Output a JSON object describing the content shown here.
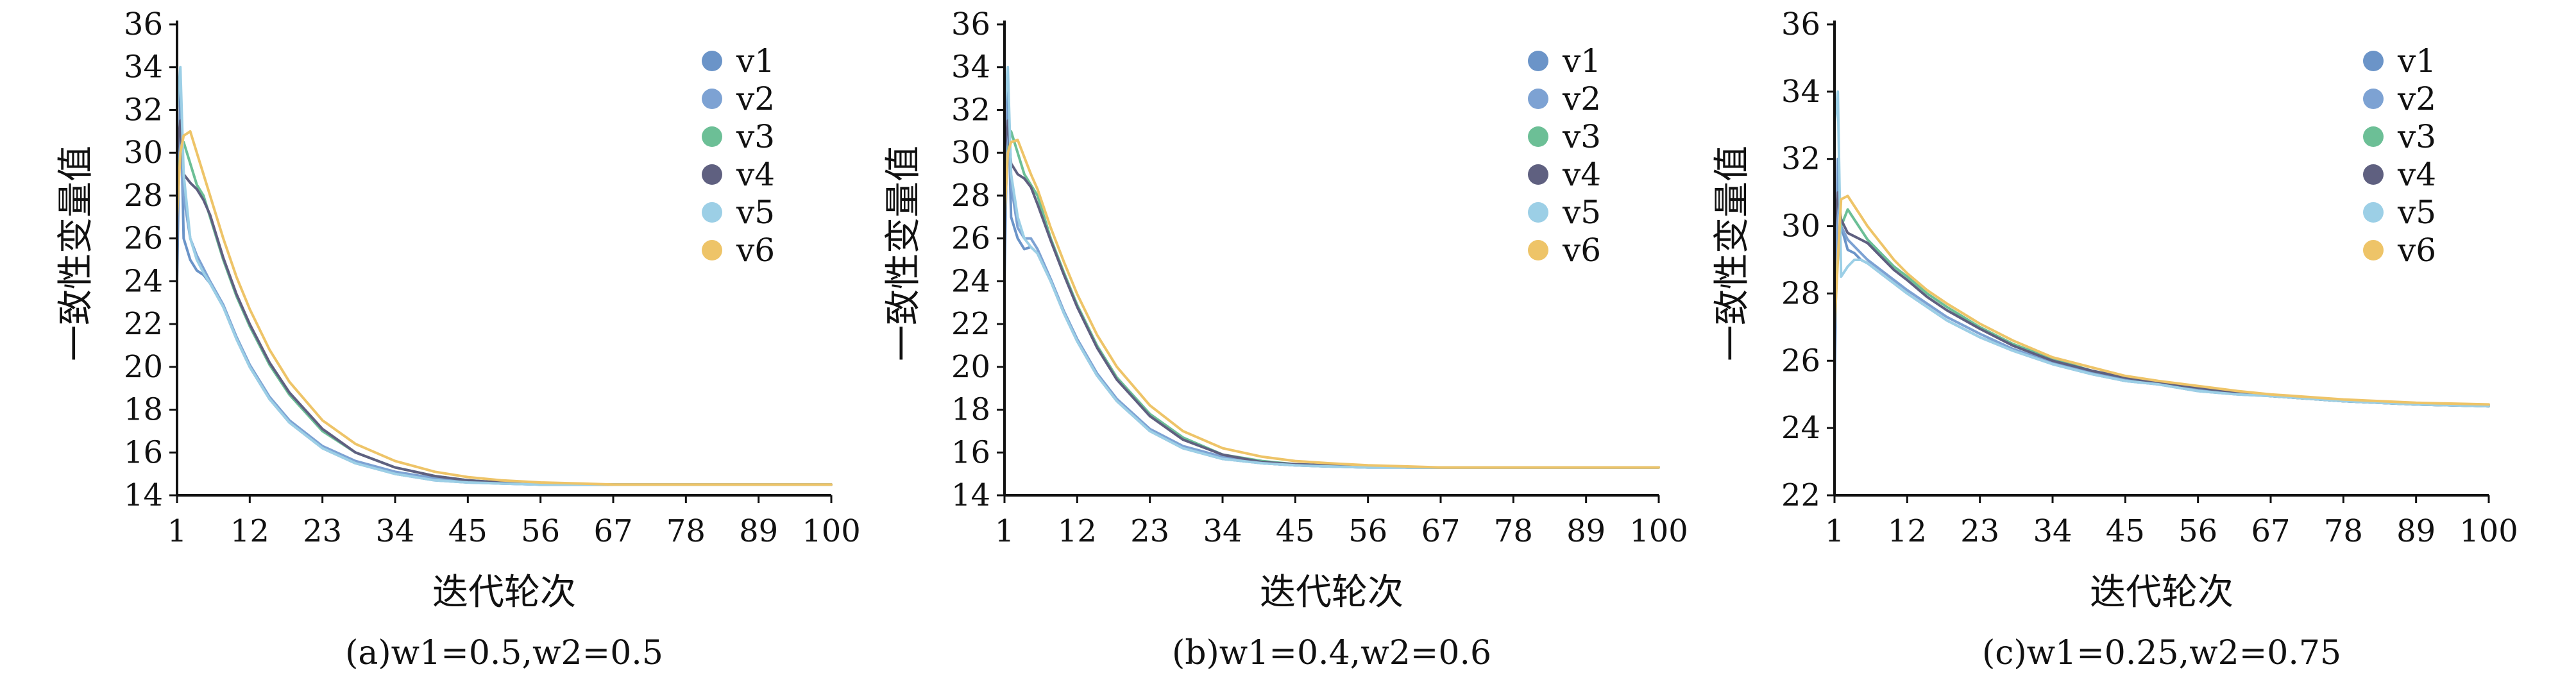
{
  "chart_data": [
    {
      "panel": "(a)",
      "caption": "(a)w1=0.5,w2=0.5",
      "type": "line",
      "xlabel": "迭代轮次",
      "ylabel": "一致性变量值",
      "xlim": [
        1,
        100
      ],
      "ylim": [
        14,
        36
      ],
      "xticks": [
        1,
        12,
        23,
        34,
        45,
        56,
        67,
        78,
        89,
        100
      ],
      "yticks": [
        14,
        16,
        18,
        20,
        22,
        24,
        26,
        28,
        30,
        32,
        34,
        36
      ],
      "grid": false,
      "legend_position": "top-right",
      "series": [
        {
          "name": "v1",
          "color": "#6b94c8",
          "x": [
            1,
            1.5,
            2,
            3,
            4,
            5,
            6,
            8,
            10,
            12,
            15,
            18,
            23,
            28,
            34,
            40,
            45,
            50,
            56,
            62,
            67,
            78,
            89,
            100
          ],
          "y": [
            24,
            33,
            26,
            25,
            24.5,
            24.3,
            23.9,
            22.8,
            21.3,
            20.0,
            18.5,
            17.4,
            16.2,
            15.5,
            15.0,
            14.7,
            14.6,
            14.55,
            14.5,
            14.5,
            14.5,
            14.5,
            14.5,
            14.5
          ]
        },
        {
          "name": "v2",
          "color": "#7da2d3",
          "x": [
            1,
            1.5,
            2,
            3,
            4,
            5,
            6,
            8,
            10,
            12,
            15,
            18,
            23,
            28,
            34,
            40,
            45,
            50,
            56,
            62,
            67,
            78,
            89,
            100
          ],
          "y": [
            26,
            31,
            28,
            26,
            25.2,
            24.6,
            24.0,
            22.9,
            21.4,
            20.1,
            18.6,
            17.5,
            16.3,
            15.6,
            15.1,
            14.8,
            14.65,
            14.55,
            14.5,
            14.5,
            14.5,
            14.5,
            14.5,
            14.5
          ]
        },
        {
          "name": "v3",
          "color": "#6cbf96",
          "x": [
            1,
            1.5,
            2,
            3,
            4,
            5,
            6,
            8,
            10,
            12,
            15,
            18,
            23,
            28,
            34,
            40,
            45,
            50,
            56,
            62,
            67,
            78,
            89,
            100
          ],
          "y": [
            28,
            30,
            30.5,
            29.5,
            28.5,
            28.0,
            27.0,
            25.0,
            23.3,
            21.9,
            20.1,
            18.7,
            17.0,
            16.0,
            15.3,
            14.9,
            14.7,
            14.6,
            14.5,
            14.5,
            14.5,
            14.5,
            14.5,
            14.5
          ]
        },
        {
          "name": "v4",
          "color": "#5f6080",
          "x": [
            1,
            1.5,
            2,
            3,
            4,
            5,
            6,
            8,
            10,
            12,
            15,
            18,
            23,
            28,
            34,
            40,
            45,
            50,
            56,
            62,
            67,
            78,
            89,
            100
          ],
          "y": [
            30,
            31.5,
            29,
            28.6,
            28.3,
            27.8,
            27.1,
            25.1,
            23.4,
            22.0,
            20.2,
            18.8,
            17.1,
            16.0,
            15.3,
            14.9,
            14.7,
            14.6,
            14.5,
            14.5,
            14.5,
            14.5,
            14.5,
            14.5
          ]
        },
        {
          "name": "v5",
          "color": "#9ccfe6",
          "x": [
            1,
            1.5,
            2,
            3,
            4,
            5,
            6,
            8,
            10,
            12,
            15,
            18,
            23,
            28,
            34,
            40,
            45,
            50,
            56,
            62,
            67,
            78,
            89,
            100
          ],
          "y": [
            32,
            34,
            29,
            26,
            25,
            24.4,
            23.9,
            22.8,
            21.3,
            20.0,
            18.5,
            17.4,
            16.2,
            15.5,
            15.0,
            14.7,
            14.6,
            14.55,
            14.5,
            14.5,
            14.5,
            14.5,
            14.5,
            14.5
          ]
        },
        {
          "name": "v6",
          "color": "#eec468",
          "x": [
            1,
            1.5,
            2,
            3,
            4,
            5,
            6,
            8,
            10,
            12,
            15,
            18,
            23,
            28,
            34,
            40,
            45,
            50,
            56,
            62,
            67,
            78,
            89,
            100
          ],
          "y": [
            27,
            30,
            30.8,
            31.0,
            30.0,
            29.0,
            28.0,
            26.0,
            24.2,
            22.7,
            20.8,
            19.3,
            17.5,
            16.4,
            15.6,
            15.1,
            14.85,
            14.7,
            14.6,
            14.55,
            14.5,
            14.5,
            14.5,
            14.5
          ]
        }
      ]
    },
    {
      "panel": "(b)",
      "caption": "(b)w1=0.4,w2=0.6",
      "type": "line",
      "xlabel": "迭代轮次",
      "ylabel": "一致性变量值",
      "xlim": [
        1,
        100
      ],
      "ylim": [
        14,
        36
      ],
      "xticks": [
        1,
        12,
        23,
        34,
        45,
        56,
        67,
        78,
        89,
        100
      ],
      "yticks": [
        14,
        16,
        18,
        20,
        22,
        24,
        26,
        28,
        30,
        32,
        34,
        36
      ],
      "grid": false,
      "legend_position": "top-right",
      "series": [
        {
          "name": "v1",
          "color": "#6b94c8",
          "x": [
            1,
            1.5,
            2,
            3,
            4,
            5,
            6,
            8,
            10,
            12,
            15,
            18,
            23,
            28,
            34,
            40,
            45,
            50,
            56,
            62,
            67,
            78,
            89,
            100
          ],
          "y": [
            24,
            33,
            27,
            26,
            25.5,
            25.6,
            25.3,
            24.0,
            22.5,
            21.2,
            19.6,
            18.4,
            17.0,
            16.2,
            15.7,
            15.5,
            15.4,
            15.35,
            15.3,
            15.3,
            15.3,
            15.3,
            15.3,
            15.3
          ]
        },
        {
          "name": "v2",
          "color": "#7da2d3",
          "x": [
            1,
            1.5,
            2,
            3,
            4,
            5,
            6,
            8,
            10,
            12,
            15,
            18,
            23,
            28,
            34,
            40,
            45,
            50,
            56,
            62,
            67,
            78,
            89,
            100
          ],
          "y": [
            26,
            31,
            28.5,
            26.5,
            26,
            26.0,
            25.5,
            24.1,
            22.6,
            21.3,
            19.7,
            18.5,
            17.1,
            16.3,
            15.8,
            15.5,
            15.4,
            15.35,
            15.3,
            15.3,
            15.3,
            15.3,
            15.3,
            15.3
          ]
        },
        {
          "name": "v3",
          "color": "#6cbf96",
          "x": [
            1,
            1.5,
            2,
            3,
            4,
            5,
            6,
            8,
            10,
            12,
            15,
            18,
            23,
            28,
            34,
            40,
            45,
            50,
            56,
            62,
            67,
            78,
            89,
            100
          ],
          "y": [
            28,
            30,
            31,
            30,
            29,
            28.5,
            28.0,
            26.0,
            24.4,
            22.9,
            21.0,
            19.5,
            17.8,
            16.7,
            15.9,
            15.6,
            15.45,
            15.4,
            15.35,
            15.3,
            15.3,
            15.3,
            15.3,
            15.3
          ]
        },
        {
          "name": "v4",
          "color": "#5f6080",
          "x": [
            1,
            1.5,
            2,
            3,
            4,
            5,
            6,
            8,
            10,
            12,
            15,
            18,
            23,
            28,
            34,
            40,
            45,
            50,
            56,
            62,
            67,
            78,
            89,
            100
          ],
          "y": [
            30,
            31.5,
            29.5,
            29,
            28.8,
            28.4,
            27.6,
            25.9,
            24.3,
            22.8,
            20.9,
            19.4,
            17.7,
            16.6,
            15.9,
            15.55,
            15.45,
            15.4,
            15.35,
            15.3,
            15.3,
            15.3,
            15.3,
            15.3
          ]
        },
        {
          "name": "v5",
          "color": "#9ccfe6",
          "x": [
            1,
            1.5,
            2,
            3,
            4,
            5,
            6,
            8,
            10,
            12,
            15,
            18,
            23,
            28,
            34,
            40,
            45,
            50,
            56,
            62,
            67,
            78,
            89,
            100
          ],
          "y": [
            32,
            34,
            29,
            27,
            26,
            25.6,
            25.3,
            24.0,
            22.5,
            21.2,
            19.6,
            18.4,
            17.0,
            16.2,
            15.7,
            15.5,
            15.4,
            15.35,
            15.3,
            15.3,
            15.3,
            15.3,
            15.3,
            15.3
          ]
        },
        {
          "name": "v6",
          "color": "#eec468",
          "x": [
            1,
            1.5,
            2,
            3,
            4,
            5,
            6,
            8,
            10,
            12,
            15,
            18,
            23,
            28,
            34,
            40,
            45,
            50,
            56,
            62,
            67,
            78,
            89,
            100
          ],
          "y": [
            27,
            30,
            30.5,
            30.6,
            29.8,
            29.0,
            28.3,
            26.5,
            24.9,
            23.4,
            21.5,
            20.0,
            18.2,
            17.0,
            16.2,
            15.8,
            15.6,
            15.5,
            15.4,
            15.35,
            15.3,
            15.3,
            15.3,
            15.3
          ]
        }
      ]
    },
    {
      "panel": "(c)",
      "caption": "(c)w1=0.25,w2=0.75",
      "type": "line",
      "xlabel": "迭代轮次",
      "ylabel": "一致性变量值",
      "xlim": [
        1,
        100
      ],
      "ylim": [
        22,
        36
      ],
      "xticks": [
        1,
        12,
        23,
        34,
        45,
        56,
        67,
        78,
        89,
        100
      ],
      "yticks": [
        22,
        24,
        26,
        28,
        30,
        32,
        34,
        36
      ],
      "grid": false,
      "legend_position": "top-right",
      "series": [
        {
          "name": "v1",
          "color": "#6b94c8",
          "x": [
            1,
            1.5,
            2,
            3,
            4,
            5,
            6,
            8,
            10,
            12,
            15,
            18,
            23,
            28,
            34,
            40,
            45,
            50,
            56,
            62,
            67,
            78,
            89,
            100
          ],
          "y": [
            25,
            32,
            30,
            29.3,
            29.2,
            29.0,
            28.9,
            28.6,
            28.3,
            28.0,
            27.6,
            27.2,
            26.7,
            26.3,
            25.9,
            25.6,
            25.4,
            25.3,
            25.1,
            25.0,
            24.95,
            24.8,
            24.7,
            24.65
          ]
        },
        {
          "name": "v2",
          "color": "#7da2d3",
          "x": [
            1,
            1.5,
            2,
            3,
            4,
            5,
            6,
            8,
            10,
            12,
            15,
            18,
            23,
            28,
            34,
            40,
            45,
            50,
            56,
            62,
            67,
            78,
            89,
            100
          ],
          "y": [
            27,
            31,
            30,
            29.6,
            29.4,
            29.2,
            29.0,
            28.7,
            28.4,
            28.1,
            27.7,
            27.3,
            26.8,
            26.35,
            25.95,
            25.65,
            25.45,
            25.3,
            25.15,
            25.05,
            24.95,
            24.8,
            24.7,
            24.65
          ]
        },
        {
          "name": "v3",
          "color": "#6cbf96",
          "x": [
            1,
            1.5,
            2,
            3,
            4,
            5,
            6,
            8,
            10,
            12,
            15,
            18,
            23,
            28,
            34,
            40,
            45,
            50,
            56,
            62,
            67,
            78,
            89,
            100
          ],
          "y": [
            28,
            29,
            30,
            30.5,
            30.2,
            29.9,
            29.6,
            29.2,
            28.8,
            28.5,
            28.0,
            27.6,
            27.0,
            26.5,
            26.05,
            25.7,
            25.5,
            25.35,
            25.2,
            25.05,
            24.95,
            24.8,
            24.7,
            24.65
          ]
        },
        {
          "name": "v4",
          "color": "#5f6080",
          "x": [
            1,
            1.5,
            2,
            3,
            4,
            5,
            6,
            8,
            10,
            12,
            15,
            18,
            23,
            28,
            34,
            40,
            45,
            50,
            56,
            62,
            67,
            78,
            89,
            100
          ],
          "y": [
            30,
            31,
            30.2,
            29.8,
            29.7,
            29.6,
            29.5,
            29.1,
            28.7,
            28.4,
            27.9,
            27.5,
            26.95,
            26.45,
            26.0,
            25.7,
            25.5,
            25.35,
            25.2,
            25.05,
            24.95,
            24.8,
            24.7,
            24.65
          ]
        },
        {
          "name": "v5",
          "color": "#9ccfe6",
          "x": [
            1,
            1.5,
            2,
            3,
            4,
            5,
            6,
            8,
            10,
            12,
            15,
            18,
            23,
            28,
            34,
            40,
            45,
            50,
            56,
            62,
            67,
            78,
            89,
            100
          ],
          "y": [
            33,
            34,
            28.5,
            28.8,
            29.0,
            29.0,
            28.9,
            28.6,
            28.3,
            28.0,
            27.6,
            27.2,
            26.7,
            26.3,
            25.9,
            25.6,
            25.4,
            25.3,
            25.1,
            25.0,
            24.95,
            24.8,
            24.7,
            24.65
          ]
        },
        {
          "name": "v6",
          "color": "#eec468",
          "x": [
            1,
            1.5,
            2,
            3,
            4,
            5,
            6,
            8,
            10,
            12,
            15,
            18,
            23,
            28,
            34,
            40,
            45,
            50,
            56,
            62,
            67,
            78,
            89,
            100
          ],
          "y": [
            27,
            29,
            30.8,
            30.9,
            30.6,
            30.3,
            30.0,
            29.5,
            29.0,
            28.6,
            28.1,
            27.7,
            27.1,
            26.6,
            26.1,
            25.8,
            25.55,
            25.4,
            25.25,
            25.1,
            25.0,
            24.85,
            24.75,
            24.7
          ]
        }
      ]
    }
  ]
}
